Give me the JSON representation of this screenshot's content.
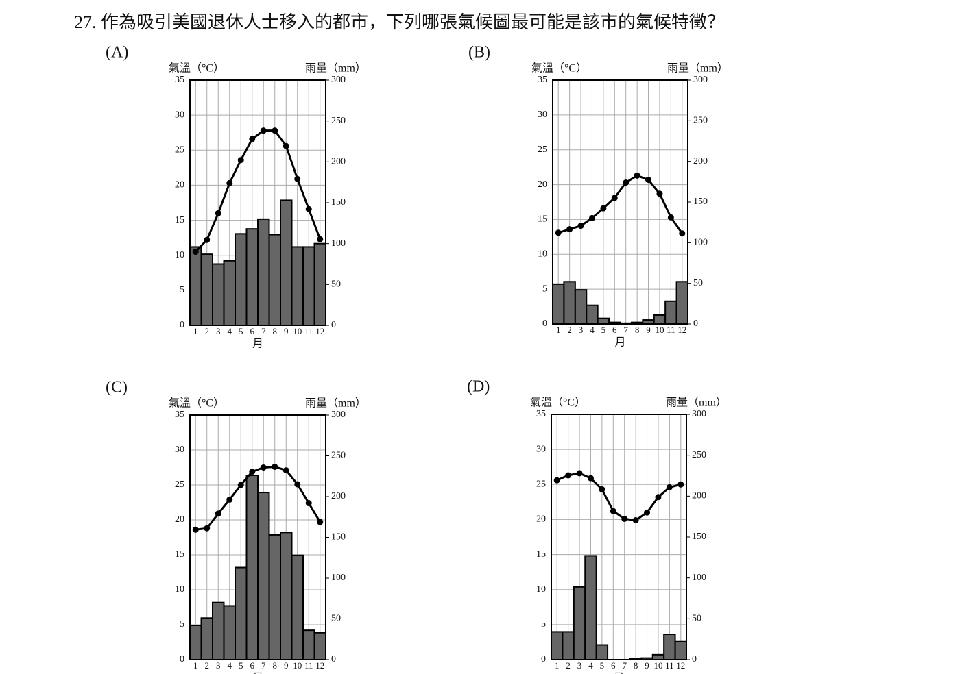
{
  "question": "27. 作為吸引美國退休人士移入的都市，下列哪張氣候圖最可能是該市的氣候特徵？",
  "chart_data": [
    {
      "type": "climograph",
      "panel": "(A)",
      "ylabel": "氣溫（°C）",
      "y2label": "雨量（mm）",
      "xlabel": "月",
      "categories": [
        "1",
        "2",
        "3",
        "4",
        "5",
        "6",
        "7",
        "8",
        "9",
        "10",
        "11",
        "12"
      ],
      "series": [
        {
          "name": "雨量",
          "color": "#666666",
          "axis": "y2",
          "values": [
            96,
            87,
            75,
            79,
            112,
            118,
            130,
            111,
            153,
            96,
            96,
            100
          ]
        },
        {
          "name": "氣溫",
          "color": "#000000",
          "axis": "y",
          "values": [
            10.5,
            12.2,
            16,
            20.3,
            23.6,
            26.6,
            27.8,
            27.8,
            25.6,
            20.9,
            16.6,
            12.3
          ]
        }
      ],
      "ylim": [
        0,
        35
      ],
      "yticks": [
        0,
        5,
        10,
        15,
        20,
        25,
        30,
        35
      ],
      "y2lim": [
        0,
        300
      ],
      "y2ticks": [
        0,
        50,
        100,
        150,
        200,
        250,
        300
      ],
      "grid": true
    },
    {
      "type": "climograph",
      "panel": "(B)",
      "ylabel": "氣溫（°C）",
      "y2label": "雨量（mm）",
      "xlabel": "月",
      "categories": [
        "1",
        "2",
        "3",
        "4",
        "5",
        "6",
        "7",
        "8",
        "9",
        "10",
        "11",
        "12"
      ],
      "series": [
        {
          "name": "雨量",
          "color": "#666666",
          "axis": "y2",
          "values": [
            49,
            52,
            42,
            23,
            7,
            2,
            1,
            2,
            5,
            11,
            28,
            52
          ]
        },
        {
          "name": "氣溫",
          "color": "#000000",
          "axis": "y",
          "values": [
            13.1,
            13.6,
            14.1,
            15.2,
            16.6,
            18.1,
            20.3,
            21.3,
            20.7,
            18.7,
            15.3,
            13
          ]
        }
      ],
      "ylim": [
        0,
        35
      ],
      "yticks": [
        0,
        5,
        10,
        15,
        20,
        25,
        30,
        35
      ],
      "y2lim": [
        0,
        300
      ],
      "y2ticks": [
        0,
        50,
        100,
        150,
        200,
        250,
        300
      ],
      "grid": true
    },
    {
      "type": "climograph",
      "panel": "(C)",
      "ylabel": "氣溫（°C）",
      "y2label": "雨量（mm）",
      "xlabel": "月",
      "categories": [
        "1",
        "2",
        "3",
        "4",
        "5",
        "6",
        "7",
        "8",
        "9",
        "10",
        "11",
        "12"
      ],
      "series": [
        {
          "name": "雨量",
          "color": "#666666",
          "axis": "y2",
          "values": [
            42,
            51,
            70,
            66,
            113,
            226,
            205,
            153,
            156,
            128,
            36,
            33
          ]
        },
        {
          "name": "氣溫",
          "color": "#000000",
          "axis": "y",
          "values": [
            18.6,
            18.8,
            20.9,
            22.9,
            25,
            26.9,
            27.5,
            27.6,
            27.1,
            25.1,
            22.4,
            19.7
          ]
        }
      ],
      "ylim": [
        0,
        35
      ],
      "yticks": [
        0,
        5,
        10,
        15,
        20,
        25,
        30,
        35
      ],
      "y2lim": [
        0,
        300
      ],
      "y2ticks": [
        0,
        50,
        100,
        150,
        200,
        250,
        300
      ],
      "grid": true
    },
    {
      "type": "climograph",
      "panel": "(D)",
      "ylabel": "氣溫（°C）",
      "y2label": "雨量（mm）",
      "xlabel": "月",
      "categories": [
        "1",
        "2",
        "3",
        "4",
        "5",
        "6",
        "7",
        "8",
        "9",
        "10",
        "11",
        "12"
      ],
      "series": [
        {
          "name": "雨量",
          "color": "#666666",
          "axis": "y2",
          "values": [
            34,
            34,
            89,
            127,
            18,
            0,
            0,
            1,
            2,
            6,
            31,
            22
          ]
        },
        {
          "name": "氣溫",
          "color": "#000000",
          "axis": "y",
          "values": [
            25.6,
            26.3,
            26.6,
            25.9,
            24.3,
            21.2,
            20.1,
            19.9,
            21,
            23.2,
            24.6,
            25
          ]
        }
      ],
      "ylim": [
        0,
        35
      ],
      "yticks": [
        0,
        5,
        10,
        15,
        20,
        25,
        30,
        35
      ],
      "y2lim": [
        0,
        300
      ],
      "y2ticks": [
        0,
        50,
        100,
        150,
        200,
        250,
        300
      ],
      "grid": true
    }
  ]
}
